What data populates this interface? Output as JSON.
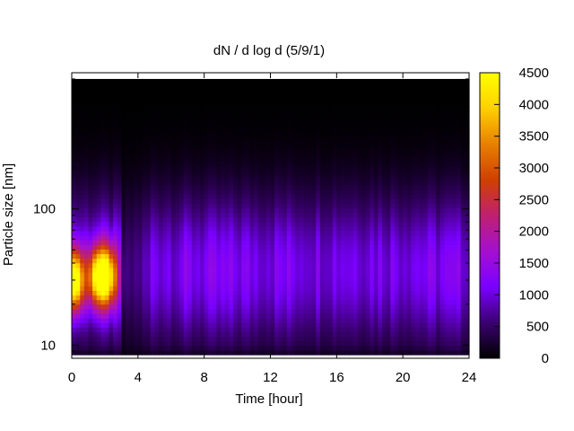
{
  "chart_data": {
    "type": "heatmap",
    "title": "dN / d log d (5/9/1)",
    "xlabel": "Time [hour]",
    "ylabel": "Particle size [nm]",
    "x_ticks": [
      0,
      4,
      8,
      12,
      16,
      20,
      24
    ],
    "xlim": [
      0,
      24
    ],
    "y_scale": "log",
    "y_ticks": [
      10,
      100
    ],
    "ylim": [
      8,
      1000
    ],
    "colorbar": {
      "range": [
        0,
        4500
      ],
      "ticks": [
        0,
        500,
        1000,
        1500,
        2000,
        2500,
        3000,
        3500,
        4000,
        4500
      ],
      "colormap": [
        "#000000",
        "#3a0070",
        "#7a00ff",
        "#a410d0",
        "#c02070",
        "#d04000",
        "#e88000",
        "#ffd000",
        "#ffff00"
      ]
    },
    "grid": false,
    "features": [
      {
        "label": "peak",
        "time": 0.2,
        "size": 30,
        "value": 4000
      },
      {
        "label": "peak",
        "time": 1.5,
        "size": 32,
        "value": 3200
      },
      {
        "label": "peak",
        "time": 2.2,
        "size": 32,
        "value": 3300
      }
    ],
    "baseline_value": 1000
  }
}
